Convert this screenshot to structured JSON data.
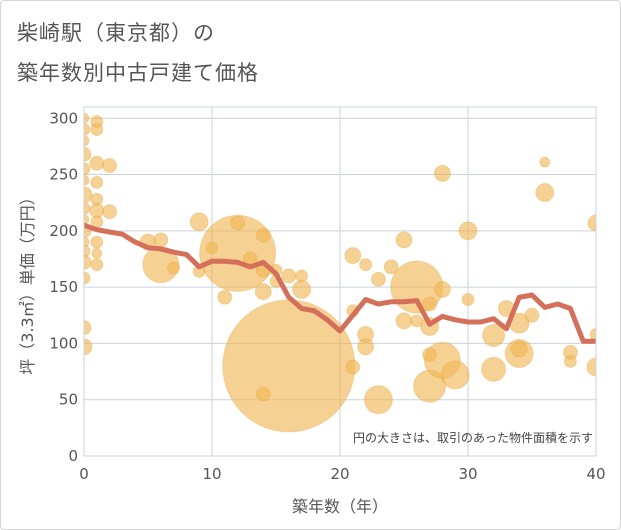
{
  "chart_title_line1": "柴崎駅（東京都）の",
  "chart_title_line2": "築年数別中古戸建て価格",
  "chart_data": {
    "type": "scatter",
    "title": "柴崎駅（東京都）の 築年数別中古戸建て価格",
    "xlabel": "築年数（年）",
    "ylabel": "坪（3.3㎡）単価（万円）",
    "xlim": [
      0,
      40
    ],
    "ylim": [
      0,
      310
    ],
    "xticks": [
      0,
      10,
      20,
      30,
      40
    ],
    "yticks": [
      0,
      50,
      100,
      150,
      200,
      250,
      300
    ],
    "grid": true,
    "bubble_color": "#f0b452",
    "line_color": "#d4705a",
    "annotation": "円の大きさは、取引のあった物件面積を示す",
    "bubbles": [
      {
        "x": 0,
        "y": 300,
        "s": 5
      },
      {
        "x": 0,
        "y": 290,
        "s": 6
      },
      {
        "x": 0,
        "y": 280,
        "s": 5
      },
      {
        "x": 0,
        "y": 268,
        "s": 7
      },
      {
        "x": 0,
        "y": 255,
        "s": 6
      },
      {
        "x": 0,
        "y": 245,
        "s": 5
      },
      {
        "x": 0,
        "y": 232,
        "s": 8
      },
      {
        "x": 0,
        "y": 220,
        "s": 6
      },
      {
        "x": 0,
        "y": 210,
        "s": 5
      },
      {
        "x": 0,
        "y": 200,
        "s": 7
      },
      {
        "x": 0,
        "y": 190,
        "s": 5
      },
      {
        "x": 0,
        "y": 182,
        "s": 6
      },
      {
        "x": 0,
        "y": 172,
        "s": 7
      },
      {
        "x": 0,
        "y": 158,
        "s": 6
      },
      {
        "x": 0,
        "y": 114,
        "s": 7
      },
      {
        "x": 0,
        "y": 97,
        "s": 8
      },
      {
        "x": 1,
        "y": 297,
        "s": 6
      },
      {
        "x": 1,
        "y": 290,
        "s": 6
      },
      {
        "x": 1,
        "y": 260,
        "s": 7
      },
      {
        "x": 1,
        "y": 243,
        "s": 6
      },
      {
        "x": 1,
        "y": 228,
        "s": 6
      },
      {
        "x": 1,
        "y": 218,
        "s": 7
      },
      {
        "x": 1,
        "y": 208,
        "s": 6
      },
      {
        "x": 1,
        "y": 190,
        "s": 6
      },
      {
        "x": 1,
        "y": 180,
        "s": 5
      },
      {
        "x": 1,
        "y": 170,
        "s": 6
      },
      {
        "x": 2,
        "y": 258,
        "s": 7
      },
      {
        "x": 2,
        "y": 217,
        "s": 7
      },
      {
        "x": 5,
        "y": 190,
        "s": 8
      },
      {
        "x": 6,
        "y": 192,
        "s": 7
      },
      {
        "x": 6,
        "y": 170,
        "s": 18
      },
      {
        "x": 7,
        "y": 167,
        "s": 6
      },
      {
        "x": 9,
        "y": 208,
        "s": 9
      },
      {
        "x": 9,
        "y": 164,
        "s": 6
      },
      {
        "x": 10,
        "y": 185,
        "s": 6
      },
      {
        "x": 11,
        "y": 141,
        "s": 7
      },
      {
        "x": 12,
        "y": 180,
        "s": 38
      },
      {
        "x": 12,
        "y": 207,
        "s": 7
      },
      {
        "x": 13,
        "y": 175,
        "s": 7
      },
      {
        "x": 14,
        "y": 196,
        "s": 7
      },
      {
        "x": 14,
        "y": 165,
        "s": 7
      },
      {
        "x": 14,
        "y": 146,
        "s": 8
      },
      {
        "x": 14,
        "y": 55,
        "s": 7
      },
      {
        "x": 15,
        "y": 165,
        "s": 6
      },
      {
        "x": 15,
        "y": 155,
        "s": 6
      },
      {
        "x": 16,
        "y": 80,
        "s": 66
      },
      {
        "x": 16,
        "y": 160,
        "s": 7
      },
      {
        "x": 17,
        "y": 148,
        "s": 9
      },
      {
        "x": 17,
        "y": 160,
        "s": 6
      },
      {
        "x": 21,
        "y": 178,
        "s": 8
      },
      {
        "x": 21,
        "y": 129,
        "s": 6
      },
      {
        "x": 21,
        "y": 79,
        "s": 7
      },
      {
        "x": 22,
        "y": 108,
        "s": 8
      },
      {
        "x": 22,
        "y": 97,
        "s": 8
      },
      {
        "x": 22,
        "y": 170,
        "s": 6
      },
      {
        "x": 23,
        "y": 50,
        "s": 14
      },
      {
        "x": 23,
        "y": 157,
        "s": 7
      },
      {
        "x": 24,
        "y": 168,
        "s": 7
      },
      {
        "x": 25,
        "y": 192,
        "s": 8
      },
      {
        "x": 25,
        "y": 120,
        "s": 8
      },
      {
        "x": 26,
        "y": 150,
        "s": 26
      },
      {
        "x": 26,
        "y": 120,
        "s": 6
      },
      {
        "x": 27,
        "y": 135,
        "s": 7
      },
      {
        "x": 27,
        "y": 115,
        "s": 9
      },
      {
        "x": 27,
        "y": 90,
        "s": 7
      },
      {
        "x": 27,
        "y": 62,
        "s": 16
      },
      {
        "x": 28,
        "y": 251,
        "s": 8
      },
      {
        "x": 28,
        "y": 148,
        "s": 8
      },
      {
        "x": 28,
        "y": 85,
        "s": 18
      },
      {
        "x": 29,
        "y": 72,
        "s": 14
      },
      {
        "x": 30,
        "y": 200,
        "s": 9
      },
      {
        "x": 30,
        "y": 139,
        "s": 6
      },
      {
        "x": 32,
        "y": 107,
        "s": 11
      },
      {
        "x": 32,
        "y": 77,
        "s": 12
      },
      {
        "x": 33,
        "y": 131,
        "s": 8
      },
      {
        "x": 34,
        "y": 118,
        "s": 10
      },
      {
        "x": 34,
        "y": 91,
        "s": 14
      },
      {
        "x": 34,
        "y": 95,
        "s": 8
      },
      {
        "x": 35,
        "y": 125,
        "s": 7
      },
      {
        "x": 36,
        "y": 261,
        "s": 5
      },
      {
        "x": 36,
        "y": 234,
        "s": 9
      },
      {
        "x": 38,
        "y": 92,
        "s": 7
      },
      {
        "x": 38,
        "y": 84,
        "s": 6
      },
      {
        "x": 40,
        "y": 207,
        "s": 8
      },
      {
        "x": 40,
        "y": 108,
        "s": 6
      },
      {
        "x": 40,
        "y": 79,
        "s": 9
      }
    ],
    "average_line": {
      "x": [
        0,
        1,
        2,
        3,
        4,
        5,
        6,
        7,
        8,
        9,
        10,
        11,
        12,
        13,
        14,
        15,
        16,
        17,
        18,
        19,
        20,
        21,
        22,
        23,
        24,
        25,
        26,
        27,
        28,
        29,
        30,
        31,
        32,
        33,
        34,
        35,
        36,
        37,
        38,
        39,
        40
      ],
      "y": [
        205,
        201,
        199,
        197,
        190,
        185,
        184,
        181,
        179,
        168,
        173,
        173,
        172,
        168,
        172,
        162,
        141,
        131,
        129,
        121,
        111,
        125,
        139,
        135,
        137,
        137,
        138,
        117,
        124,
        121,
        119,
        119,
        122,
        113,
        141,
        143,
        132,
        135,
        131,
        102,
        102
      ]
    }
  }
}
